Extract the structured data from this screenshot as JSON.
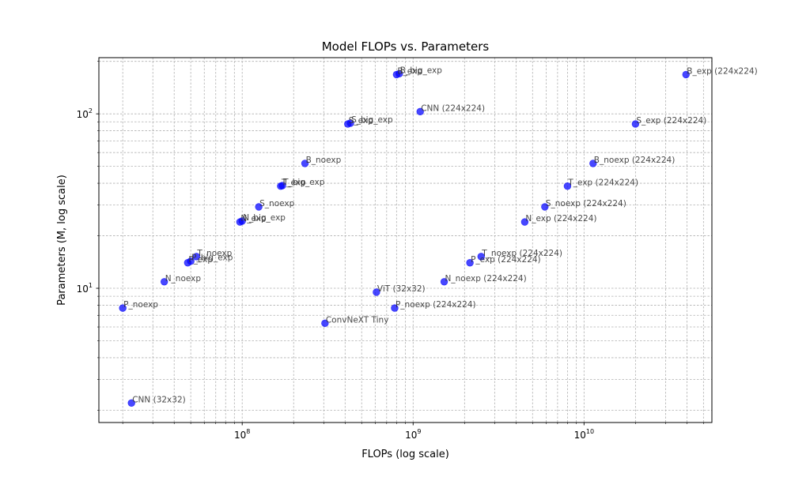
{
  "chart_data": {
    "type": "scatter",
    "title": "Model FLOPs vs. Parameters",
    "xlabel": "FLOPs (log scale)",
    "ylabel": "Parameters (M, log scale)",
    "xscale": "log",
    "yscale": "log",
    "xlim": [
      14500000.0,
      56000000000.0
    ],
    "ylim": [
      1.7,
      210
    ],
    "grid": true,
    "marker_color": "#0000ff",
    "x_tick_labels": [
      {
        "value": 100000000.0,
        "base": "10",
        "exp": "8"
      },
      {
        "value": 1000000000.0,
        "base": "10",
        "exp": "9"
      },
      {
        "value": 10000000000.0,
        "base": "10",
        "exp": "10"
      }
    ],
    "y_tick_labels": [
      {
        "value": 10,
        "base": "10",
        "exp": "1"
      },
      {
        "value": 100,
        "base": "10",
        "exp": "2"
      }
    ],
    "points": [
      {
        "label": "CNN (32x32)",
        "x": 22500000.0,
        "y": 2.2
      },
      {
        "label": "P_noexp",
        "x": 20000000.0,
        "y": 7.7
      },
      {
        "label": "N_noexp",
        "x": 35000000.0,
        "y": 10.9
      },
      {
        "label": "P_exp",
        "x": 48000000.0,
        "y": 14.0
      },
      {
        "label": "P_big_exp",
        "x": 50000000.0,
        "y": 14.3
      },
      {
        "label": "T_noexp",
        "x": 54000000.0,
        "y": 15.2
      },
      {
        "label": "N_exp",
        "x": 97000000.0,
        "y": 24.0
      },
      {
        "label": "N_big_exp",
        "x": 100000000.0,
        "y": 24.3
      },
      {
        "label": "S_noexp",
        "x": 125000000.0,
        "y": 29.3
      },
      {
        "label": "T_exp",
        "x": 168000000.0,
        "y": 38.5
      },
      {
        "label": "T_big_exp",
        "x": 172000000.0,
        "y": 38.8
      },
      {
        "label": "B_noexp",
        "x": 233000000.0,
        "y": 52.0
      },
      {
        "label": "ConvNeXT Tiny",
        "x": 305000000.0,
        "y": 6.3
      },
      {
        "label": "S_exp",
        "x": 415000000.0,
        "y": 87.5
      },
      {
        "label": "S_big_exp",
        "x": 430000000.0,
        "y": 88.5
      },
      {
        "label": "ViT (32x32)",
        "x": 610000000.0,
        "y": 9.5
      },
      {
        "label": "P_noexp (224x224)",
        "x": 780000000.0,
        "y": 7.7
      },
      {
        "label": "B_exp",
        "x": 800000000.0,
        "y": 168.0
      },
      {
        "label": "B_big_exp",
        "x": 830000000.0,
        "y": 170.0
      },
      {
        "label": "CNN (224x224)",
        "x": 1100000000.0,
        "y": 103.0
      },
      {
        "label": "N_noexp (224x224)",
        "x": 1520000000.0,
        "y": 10.9
      },
      {
        "label": "P_exp (224x224)",
        "x": 2150000000.0,
        "y": 14.0
      },
      {
        "label": "T_noexp (224x224)",
        "x": 2500000000.0,
        "y": 15.2
      },
      {
        "label": "N_exp (224x224)",
        "x": 4500000000.0,
        "y": 24.0
      },
      {
        "label": "S_noexp (224x224)",
        "x": 5900000000.0,
        "y": 29.3
      },
      {
        "label": "T_exp (224x224)",
        "x": 8000000000.0,
        "y": 38.5
      },
      {
        "label": "B_noexp (224x224)",
        "x": 11300000000.0,
        "y": 52.0
      },
      {
        "label": "S_exp (224x224)",
        "x": 20000000000.0,
        "y": 87.5
      },
      {
        "label": "B_exp (224x224)",
        "x": 39500000000.0,
        "y": 168.0
      }
    ]
  }
}
